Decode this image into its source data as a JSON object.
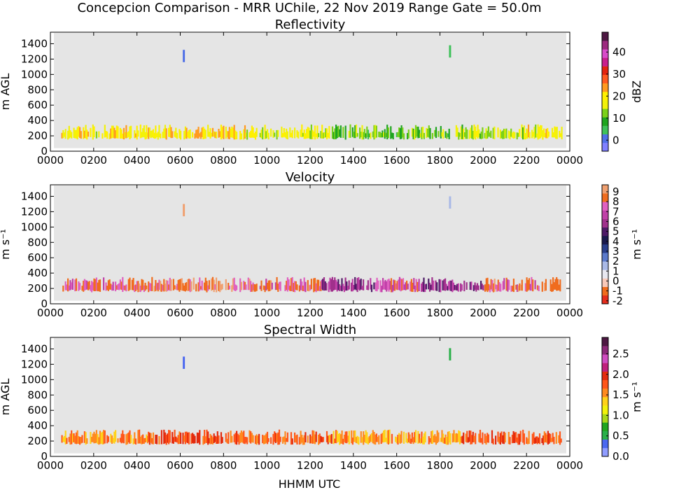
{
  "figure": {
    "suptitle": "Concepcion Comparison - MRR UChile, 22 Nov 2019 Range Gate = 50.0m",
    "xlabel": "HHMM UTC"
  },
  "colors": {
    "no_data": "#e5e5e5",
    "reflectivity": [
      "#8080ff",
      "#4f6fe6",
      "#3fc15a",
      "#1fa51f",
      "#7bd11a",
      "#f2f20a",
      "#fff000",
      "#ff9a1f",
      "#ff5a1f",
      "#e3230e",
      "#c81f8c",
      "#d84cc9",
      "#9c2a7f",
      "#4d1742"
    ],
    "velocity": [
      "#e52d1d",
      "#f06c1e",
      "#f9c9b9",
      "#e8e8f0",
      "#a9b9e6",
      "#5b7acb",
      "#2a3f8c",
      "#1a1a4d",
      "#4d1a66",
      "#a0308c",
      "#c040a8",
      "#e060c0",
      "#f06c1e",
      "#f0a070"
    ],
    "spectral_width": [
      "#8f9cff",
      "#4b68f0",
      "#2bb04a",
      "#1fa51f",
      "#a8d81a",
      "#f2f20a",
      "#ffd21a",
      "#ff8a1f",
      "#ff561a",
      "#e32a0e",
      "#c0207c",
      "#d04cc0",
      "#8c2878",
      "#4d1742"
    ]
  },
  "chart_data": [
    {
      "type": "heatmap",
      "title": "Reflectivity",
      "ylabel": "m AGL",
      "colorbar_label": "dBZ",
      "colorbar_ticks": [
        "0",
        "10",
        "20",
        "30",
        "40"
      ],
      "colorbar_range": [
        -5,
        49
      ],
      "x_ticks": [
        "0000",
        "0200",
        "0400",
        "0600",
        "0800",
        "1000",
        "1200",
        "1400",
        "1600",
        "1800",
        "2000",
        "2200",
        "0000"
      ],
      "y_ticks": [
        "0",
        "200",
        "400",
        "600",
        "800",
        "1000",
        "1200",
        "1400"
      ],
      "xlim_hours": [
        0,
        24
      ],
      "ylim": [
        0,
        1550
      ],
      "main_layer_m": [
        150,
        350
      ],
      "segments": [
        {
          "start_h": 0.5,
          "end_h": 4.5,
          "value": 19
        },
        {
          "start_h": 4.5,
          "end_h": 9.0,
          "value": 20
        },
        {
          "start_h": 9.0,
          "end_h": 13.0,
          "value": 17
        },
        {
          "start_h": 13.0,
          "end_h": 19.0,
          "value": 11
        },
        {
          "start_h": 19.0,
          "end_h": 22.0,
          "value": 15
        },
        {
          "start_h": 22.0,
          "end_h": 23.6,
          "value": 19
        }
      ],
      "features": [
        {
          "time_h": 6.15,
          "height_m": 1240,
          "value": 2
        },
        {
          "time_h": 18.45,
          "height_m": 1300,
          "value": 3
        }
      ]
    },
    {
      "type": "heatmap",
      "title": "Velocity",
      "ylabel": "m s⁻¹",
      "colorbar_label": "m s⁻¹",
      "colorbar_ticks": [
        "-2",
        "-1",
        "0",
        "1",
        "2",
        "3",
        "4",
        "5",
        "6",
        "7",
        "8",
        "9"
      ],
      "colorbar_range": [
        -2.3,
        9.7
      ],
      "x_ticks": [
        "0000",
        "0200",
        "0400",
        "0600",
        "0800",
        "1000",
        "1200",
        "1400",
        "1600",
        "1800",
        "2000",
        "2200",
        "0000"
      ],
      "y_ticks": [
        "0",
        "200",
        "400",
        "600",
        "800",
        "1000",
        "1200",
        "1400"
      ],
      "xlim_hours": [
        0,
        24
      ],
      "ylim": [
        0,
        1550
      ],
      "main_layer_m": [
        150,
        350
      ],
      "segments": [
        {
          "start_h": 0.5,
          "end_h": 4.5,
          "value": 8
        },
        {
          "start_h": 4.5,
          "end_h": 9.0,
          "value": 8.5
        },
        {
          "start_h": 9.0,
          "end_h": 12.5,
          "value": 8
        },
        {
          "start_h": 12.5,
          "end_h": 15.0,
          "value": 6
        },
        {
          "start_h": 15.0,
          "end_h": 17.0,
          "value": 7.5
        },
        {
          "start_h": 17.0,
          "end_h": 20.0,
          "value": 6
        },
        {
          "start_h": 20.0,
          "end_h": 23.6,
          "value": 8
        }
      ],
      "features": [
        {
          "time_h": 6.15,
          "height_m": 1220,
          "value": 9.2
        },
        {
          "time_h": 18.45,
          "height_m": 1320,
          "value": 1.5
        }
      ]
    },
    {
      "type": "heatmap",
      "title": "Spectral Width",
      "ylabel": "m AGL",
      "colorbar_label": "m s⁻¹",
      "colorbar_ticks": [
        "0.0",
        "0.5",
        "1.0",
        "1.5",
        "2.0",
        "2.5"
      ],
      "colorbar_range": [
        0.0,
        2.9
      ],
      "x_ticks": [
        "0000",
        "0200",
        "0400",
        "0600",
        "0800",
        "1000",
        "1200",
        "1400",
        "1600",
        "1800",
        "2000",
        "2200",
        "0000"
      ],
      "y_ticks": [
        "0",
        "200",
        "400",
        "600",
        "800",
        "1000",
        "1200",
        "1400"
      ],
      "xlim_hours": [
        0,
        24
      ],
      "ylim": [
        0,
        1550
      ],
      "main_layer_m": [
        150,
        350
      ],
      "segments": [
        {
          "start_h": 0.5,
          "end_h": 4.5,
          "value": 1.6
        },
        {
          "start_h": 4.5,
          "end_h": 9.0,
          "value": 1.8
        },
        {
          "start_h": 9.0,
          "end_h": 13.0,
          "value": 1.7
        },
        {
          "start_h": 13.0,
          "end_h": 19.0,
          "value": 1.5
        },
        {
          "start_h": 19.0,
          "end_h": 23.6,
          "value": 1.8
        }
      ],
      "features": [
        {
          "time_h": 6.15,
          "height_m": 1220,
          "value": 0.4
        },
        {
          "time_h": 18.45,
          "height_m": 1330,
          "value": 0.5
        }
      ]
    }
  ]
}
